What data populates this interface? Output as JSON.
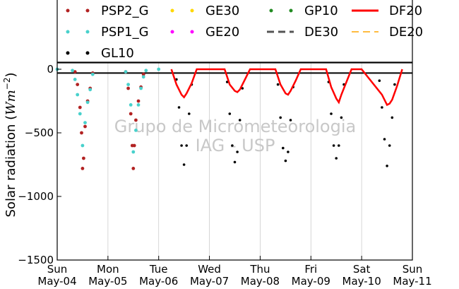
{
  "chart_data": {
    "type": "scatter",
    "title": "",
    "xlabel": "",
    "ylabel": "Solar radiation (Wm^-2)",
    "ylabel_parts": {
      "text": "Solar radiation (",
      "unit": "Wm",
      "exp": "−2",
      "close": ")"
    },
    "xlim": [
      0,
      7
    ],
    "ylim": [
      -1500,
      50
    ],
    "yticks": [
      0,
      -500,
      -1000,
      -1500
    ],
    "ytick_labels": [
      "0",
      "−500",
      "−1000",
      "−1500"
    ],
    "xticks": [
      {
        "x": 0,
        "day": "Sun",
        "date": "May-04"
      },
      {
        "x": 1,
        "day": "Mon",
        "date": "May-05"
      },
      {
        "x": 2,
        "day": "Tue",
        "date": "May-06"
      },
      {
        "x": 3,
        "day": "Wed",
        "date": "May-07"
      },
      {
        "x": 4,
        "day": "Thu",
        "date": "May-08"
      },
      {
        "x": 5,
        "day": "Fri",
        "date": "May-09"
      },
      {
        "x": 6,
        "day": "Sat",
        "date": "May-10"
      },
      {
        "x": 7,
        "day": "Sun",
        "date": "May-11"
      }
    ],
    "grid": true,
    "legend_position": "top",
    "watermark": [
      "Grupo de Micrometeorologia",
      "IAG - USP"
    ],
    "legend": [
      {
        "name": "PSP2_G",
        "color": "#b22222",
        "style": "dots"
      },
      {
        "name": "GE30",
        "color": "#ffd700",
        "style": "dots"
      },
      {
        "name": "GP10",
        "color": "#228b22",
        "style": "dots"
      },
      {
        "name": "DF20",
        "color": "#ff0000",
        "style": "line"
      },
      {
        "name": "PSP1_G",
        "color": "#48d1cc",
        "style": "dots"
      },
      {
        "name": "GE20",
        "color": "#ff00ff",
        "style": "dots"
      },
      {
        "name": "DE30",
        "color": "#555555",
        "style": "dash"
      },
      {
        "name": "DE20",
        "color": "#ffa500",
        "style": "dash"
      },
      {
        "name": "GL10",
        "color": "#000000",
        "style": "dots"
      }
    ],
    "series": [
      {
        "name": "PSP2_G",
        "color": "#b22222",
        "x": [
          0.35,
          0.4,
          0.45,
          0.48,
          0.5,
          0.52,
          0.55,
          0.6,
          0.65,
          0.7,
          1.35,
          1.4,
          1.45,
          1.48,
          1.5,
          1.52,
          1.55,
          1.6,
          1.65,
          1.7
        ],
        "y": [
          -20,
          -120,
          -300,
          -500,
          -780,
          -700,
          -450,
          -250,
          -150,
          -30,
          -20,
          -150,
          -350,
          -600,
          -780,
          -600,
          -400,
          -250,
          -140,
          -40
        ]
      },
      {
        "name": "PSP1_G",
        "color": "#48d1cc",
        "x": [
          0.0,
          0.3,
          0.35,
          0.4,
          0.45,
          0.5,
          0.55,
          0.6,
          0.65,
          0.7,
          1.35,
          1.4,
          1.45,
          1.5,
          1.55,
          1.6,
          1.65,
          1.7,
          1.75,
          2.0
        ],
        "y": [
          0,
          -10,
          -80,
          -200,
          -350,
          -600,
          -420,
          -260,
          -160,
          -40,
          -20,
          -120,
          -280,
          -650,
          -480,
          -280,
          -150,
          -60,
          -10,
          0
        ]
      },
      {
        "name": "GL10",
        "color": "#000000",
        "x": [
          2.35,
          2.4,
          2.45,
          2.5,
          2.55,
          2.6,
          2.65,
          3.35,
          3.4,
          3.45,
          3.5,
          3.55,
          3.6,
          3.65,
          4.35,
          4.4,
          4.45,
          4.5,
          4.55,
          4.6,
          4.65,
          5.35,
          5.4,
          5.45,
          5.5,
          5.55,
          5.6,
          5.65,
          6.35,
          6.4,
          6.45,
          6.5,
          6.55,
          6.6,
          6.65
        ],
        "y": [
          -80,
          -300,
          -600,
          -750,
          -600,
          -350,
          -120,
          -100,
          -350,
          -600,
          -730,
          -650,
          -400,
          -150,
          -120,
          -380,
          -620,
          -720,
          -650,
          -400,
          -140,
          -100,
          -350,
          -600,
          -700,
          -600,
          -380,
          -120,
          -90,
          -300,
          -550,
          -760,
          -600,
          -380,
          -120
        ]
      },
      {
        "name": "DF20",
        "color": "#ff0000",
        "x": [
          2.25,
          2.35,
          2.45,
          2.5,
          2.55,
          2.65,
          2.75,
          3.3,
          3.4,
          3.5,
          3.55,
          3.6,
          3.7,
          3.8,
          4.3,
          4.4,
          4.5,
          4.55,
          4.6,
          4.7,
          4.8,
          5.3,
          5.4,
          5.5,
          5.55,
          5.6,
          5.7,
          5.8,
          6.0,
          6.4,
          6.5,
          6.55,
          6.6,
          6.7,
          6.8
        ],
        "y": [
          0,
          -120,
          -200,
          -220,
          -190,
          -110,
          0,
          0,
          -120,
          -170,
          -180,
          -160,
          -80,
          0,
          0,
          -120,
          -190,
          -200,
          -170,
          -90,
          0,
          0,
          -140,
          -230,
          -260,
          -200,
          -100,
          0,
          0,
          -200,
          -280,
          -270,
          -240,
          -130,
          0
        ]
      }
    ]
  }
}
